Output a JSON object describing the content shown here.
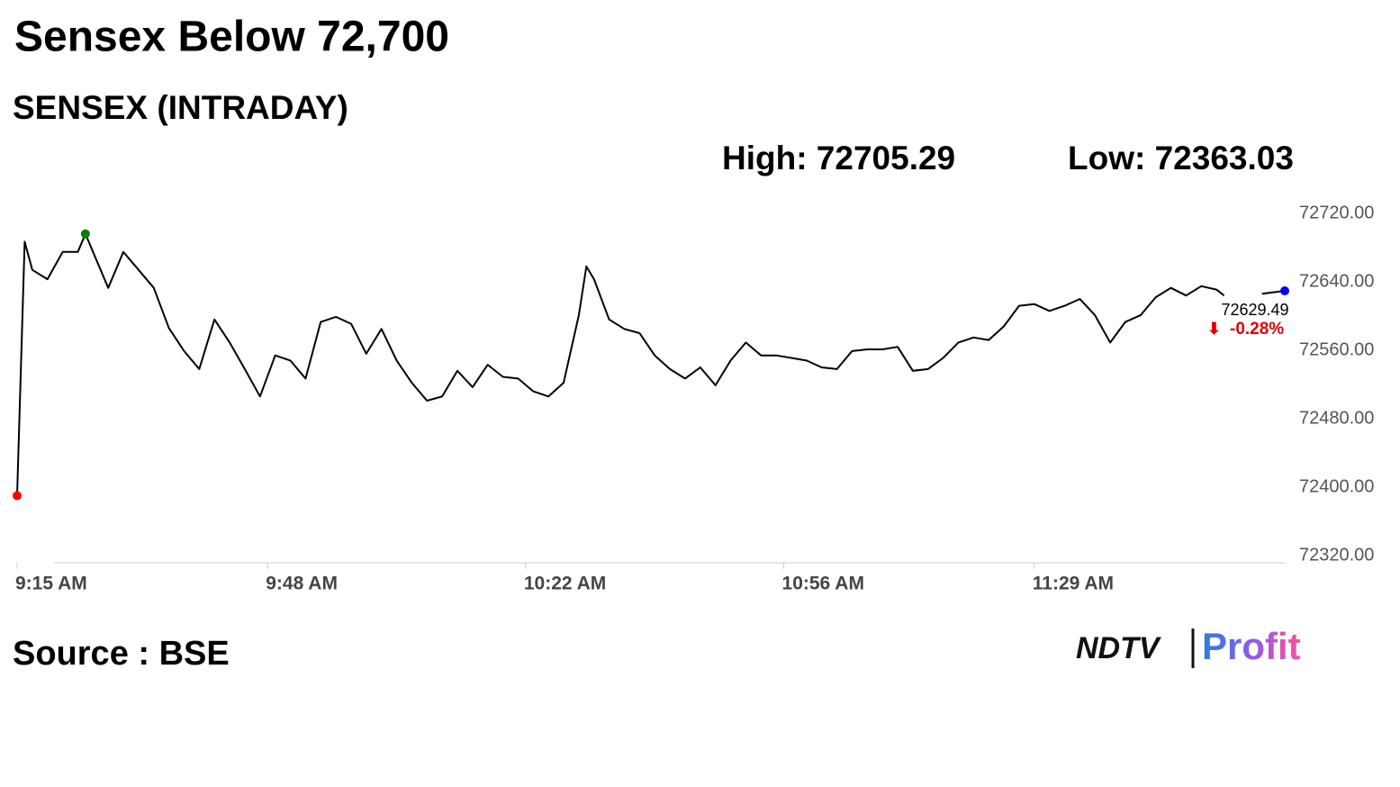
{
  "chart_data": {
    "type": "line",
    "title": "Sensex Below 72,700",
    "subtitle": "SENSEX (INTRADAY)",
    "high_label": "High: 72705.29",
    "low_label": "Low: 72363.03",
    "change_label": "-0.28%",
    "source": "Source : BSE",
    "brand": {
      "name": "NDTV",
      "product": "Profit"
    },
    "x": [
      "09:15",
      "09:16",
      "09:17",
      "09:19",
      "09:21",
      "09:23",
      "09:24",
      "09:25",
      "09:27",
      "09:29",
      "09:31",
      "09:33",
      "09:35",
      "09:37",
      "09:39",
      "09:41",
      "09:43",
      "09:45",
      "09:47",
      "09:49",
      "09:51",
      "09:53",
      "09:55",
      "09:57",
      "09:59",
      "10:01",
      "10:03",
      "10:05",
      "10:07",
      "10:09",
      "10:11",
      "10:13",
      "10:15",
      "10:17",
      "10:19",
      "10:21",
      "10:23",
      "10:25",
      "10:27",
      "10:29",
      "10:30",
      "10:31",
      "10:33",
      "10:35",
      "10:37",
      "10:39",
      "10:41",
      "10:43",
      "10:45",
      "10:47",
      "10:49",
      "10:51",
      "10:53",
      "10:55",
      "10:57",
      "10:59",
      "11:01",
      "11:03",
      "11:05",
      "11:07",
      "11:09",
      "11:11",
      "11:13",
      "11:15",
      "11:17",
      "11:19",
      "11:21",
      "11:23",
      "11:25",
      "11:27",
      "11:29",
      "11:31",
      "11:33",
      "11:35",
      "11:37",
      "11:39",
      "11:41",
      "11:43",
      "11:45",
      "11:47",
      "11:49",
      "11:51",
      "11:53",
      "11:54",
      "11:56",
      "11:59",
      "12:02"
    ],
    "series": [
      {
        "name": "SENSEX",
        "color": "#000000",
        "values": [
          72390,
          72687,
          72654,
          72643,
          72675,
          72675,
          72696,
          72675,
          72633,
          72675,
          72654,
          72633,
          72586,
          72559,
          72538,
          72596,
          72569,
          72538,
          72506,
          72554,
          72548,
          72527,
          72593,
          72599,
          72591,
          72556,
          72585,
          72548,
          72522,
          72501,
          72506,
          72536,
          72517,
          72543,
          72529,
          72527,
          72512,
          72506,
          72522,
          72601,
          72658,
          72643,
          72596,
          72585,
          72580,
          72554,
          72538,
          72527,
          72540,
          72519,
          72548,
          72569,
          72554,
          72554,
          72551,
          72548,
          72540,
          72538,
          72559,
          72561,
          72561,
          72564,
          72536,
          72538,
          72551,
          72569,
          72575,
          72572,
          72588,
          72612,
          72614,
          72606,
          72612,
          72620,
          72601,
          72569,
          72593,
          72601,
          72622,
          72633,
          72624,
          72635,
          72631,
          72624,
          null,
          72626,
          72629.49
        ]
      }
    ],
    "start_color": "#ff0000",
    "high_color": "#008000",
    "end_color": "#0000ff",
    "change_color": "#e00000",
    "xlim": [
      "09:15",
      "12:02"
    ],
    "xticks": [
      {
        "value": "09:15",
        "label": "9:15 AM"
      },
      {
        "value": "09:48",
        "label": "9:48 AM"
      },
      {
        "value": "10:22",
        "label": "10:22 AM"
      },
      {
        "value": "10:56",
        "label": "10:56 AM"
      },
      {
        "value": "11:29",
        "label": "11:29 AM"
      }
    ],
    "ylim": [
      72320,
      72720
    ],
    "yticks": [
      {
        "value": 72720,
        "label": "72720.00"
      },
      {
        "value": 72640,
        "label": "72640.00"
      },
      {
        "value": 72560,
        "label": "72560.00"
      },
      {
        "value": 72480,
        "label": "72480.00"
      },
      {
        "value": 72400,
        "label": "72400.00"
      },
      {
        "value": 72320,
        "label": "72320.00"
      }
    ],
    "grid": false
  }
}
